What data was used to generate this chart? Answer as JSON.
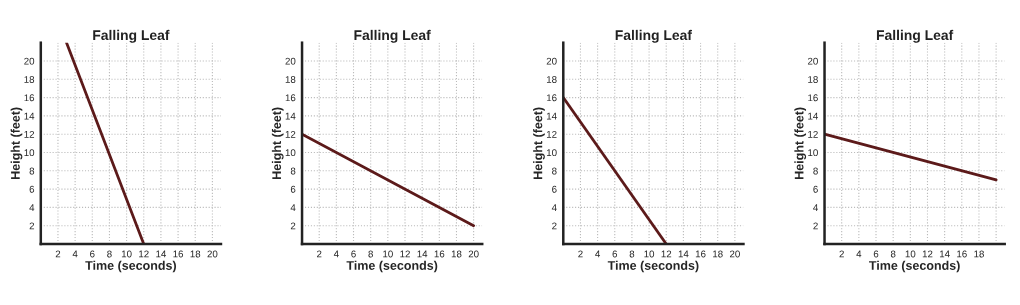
{
  "chart_data": [
    {
      "type": "line",
      "title": "Falling Leaf",
      "xlabel": "Time (seconds)",
      "ylabel": "Height (feet)",
      "xlim": [
        0,
        21
      ],
      "ylim": [
        0,
        22
      ],
      "xticks": [
        2,
        4,
        6,
        8,
        10,
        12,
        14,
        16,
        18,
        20
      ],
      "yticks": [
        2,
        4,
        6,
        8,
        10,
        12,
        14,
        16,
        18,
        20
      ],
      "grid": true,
      "marker": "none",
      "series": [
        {
          "color": "#5c1a1a",
          "x": [
            3,
            12
          ],
          "values": [
            22,
            0
          ]
        }
      ]
    },
    {
      "type": "line",
      "title": "Falling Leaf",
      "xlabel": "Time (seconds)",
      "ylabel": "Height (feet)",
      "xlim": [
        0,
        21
      ],
      "ylim": [
        0,
        22
      ],
      "xticks": [
        2,
        4,
        6,
        8,
        10,
        12,
        14,
        16,
        18,
        20
      ],
      "yticks": [
        2,
        4,
        6,
        8,
        10,
        12,
        14,
        16,
        18,
        20
      ],
      "grid": true,
      "marker": "none",
      "series": [
        {
          "color": "#5c1a1a",
          "x": [
            0,
            20
          ],
          "values": [
            12,
            2
          ]
        }
      ]
    },
    {
      "type": "line",
      "title": "Falling Leaf",
      "xlabel": "Time (seconds)",
      "ylabel": "Height (feet)",
      "xlim": [
        0,
        21
      ],
      "ylim": [
        0,
        22
      ],
      "xticks": [
        2,
        4,
        6,
        8,
        10,
        12,
        14,
        16,
        18,
        20
      ],
      "yticks": [
        2,
        4,
        6,
        8,
        10,
        12,
        14,
        16,
        18,
        20
      ],
      "grid": true,
      "marker": "none",
      "series": [
        {
          "color": "#5c1a1a",
          "x": [
            0,
            12
          ],
          "values": [
            16,
            0
          ]
        }
      ]
    },
    {
      "type": "line",
      "title": "Falling Leaf",
      "xlabel": "Time (seconds)",
      "ylabel": "Height (feet)",
      "xlim": [
        0,
        21
      ],
      "ylim": [
        0,
        22
      ],
      "xticks": [
        2,
        4,
        6,
        8,
        10,
        12,
        14,
        16,
        18,
        {
          "value": 20,
          "label": null
        }
      ],
      "yticks": [
        2,
        4,
        6,
        8,
        10,
        12,
        14,
        16,
        18,
        20
      ],
      "grid": true,
      "marker": "none",
      "series": [
        {
          "color": "#5c1a1a",
          "x": [
            0,
            20
          ],
          "values": [
            12,
            7
          ]
        }
      ]
    }
  ]
}
